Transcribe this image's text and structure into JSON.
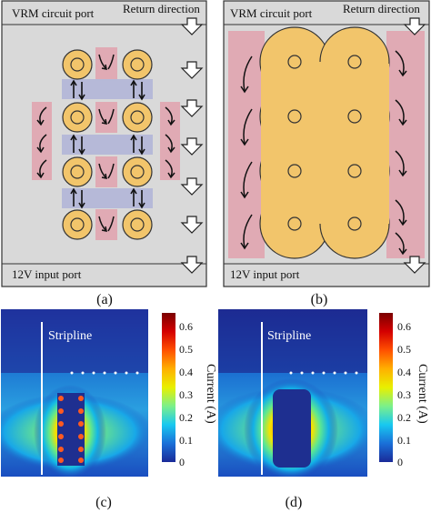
{
  "panel_a": {
    "top_label": "VRM circuit port",
    "return_label": "Return direction",
    "bottom_label": "12V input port",
    "caption": "(a)"
  },
  "panel_b": {
    "top_label": "VRM circuit port",
    "return_label": "Return direction",
    "bottom_label": "12V input port",
    "caption": "(b)"
  },
  "panel_c": {
    "stripline_label": "Stripline",
    "caption": "(c)"
  },
  "panel_d": {
    "stripline_label": "Stripline",
    "caption": "(d)"
  },
  "colorbar": {
    "label": "Current (A)",
    "ticks": [
      "0.6",
      "0.5",
      "0.4",
      "0.3",
      "0.2",
      "0.1",
      "0"
    ],
    "min": 0,
    "max": 0.65
  },
  "colors": {
    "pad_fill": "#f2c56b",
    "pink_zone": "#e0aab4",
    "blue_zone": "#b6b9d8",
    "panel_bg": "#d9d9d9"
  }
}
